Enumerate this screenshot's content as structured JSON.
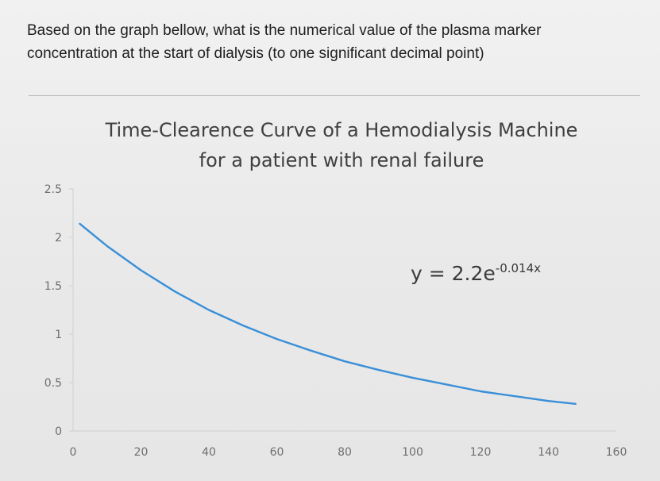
{
  "question": {
    "line1": "Based on the graph bellow, what is the numerical value of the plasma marker",
    "line2": "concentration at the start of dialysis (to one significant decimal point)"
  },
  "chart_data": {
    "type": "line",
    "title_line1": "Time-Clearence Curve of a Hemodialysis Machine",
    "title_line2": "for a patient with renal failure",
    "xlabel": "",
    "ylabel": "",
    "x_ticks": [
      "0",
      "20",
      "40",
      "60",
      "80",
      "100",
      "120",
      "140",
      "160"
    ],
    "y_ticks": [
      "0",
      "0.5",
      "1",
      "1.5",
      "2",
      "2.5"
    ],
    "xlim": [
      0,
      160
    ],
    "ylim": [
      0,
      2.5
    ],
    "grid": false,
    "legend": "none",
    "trendline_label": "y = 2.2e",
    "trendline_exponent": "-0.014x",
    "series": [
      {
        "color": "#3a8fd8",
        "x": [
          2,
          10,
          20,
          30,
          40,
          50,
          60,
          70,
          80,
          90,
          100,
          110,
          120,
          130,
          140,
          148
        ],
        "y": [
          2.14,
          1.91,
          1.66,
          1.44,
          1.25,
          1.09,
          0.95,
          0.83,
          0.72,
          0.63,
          0.55,
          0.48,
          0.41,
          0.36,
          0.31,
          0.28
        ]
      }
    ]
  }
}
